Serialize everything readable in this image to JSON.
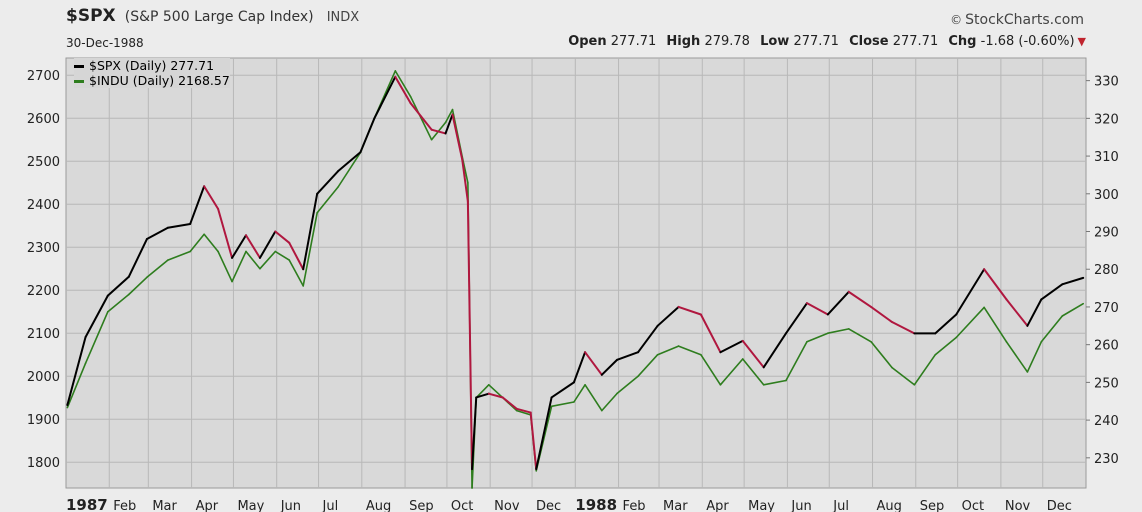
{
  "header": {
    "symbol": "$SPX",
    "name": "(S&P 500 Large Cap Index)",
    "exchange": "INDX",
    "date": "30-Dec-1988",
    "brand": "StockCharts.com",
    "brand_symbol": "©",
    "quote": {
      "open_label": "Open",
      "open": "277.71",
      "high_label": "High",
      "high": "279.78",
      "low_label": "Low",
      "low": "277.71",
      "close_label": "Close",
      "close": "277.71",
      "chg_label": "Chg",
      "chg": "-1.68 (-0.60%)",
      "chg_arrow": "▼"
    }
  },
  "chart_data": {
    "type": "line",
    "legend": [
      {
        "label": "$SPX (Daily) 277.71",
        "color": "#000000"
      },
      {
        "label": "$INDU (Daily) 2168.57",
        "color": "#2e7d1e"
      }
    ],
    "legend_placement": "top-left",
    "grid": true,
    "x_labels": [
      {
        "label": "1987",
        "bold": true
      },
      {
        "label": "Feb"
      },
      {
        "label": "Mar"
      },
      {
        "label": "Apr"
      },
      {
        "label": "May"
      },
      {
        "label": "Jun"
      },
      {
        "label": "Jul"
      },
      {
        "label": "Aug"
      },
      {
        "label": "Sep"
      },
      {
        "label": "Oct"
      },
      {
        "label": "Nov"
      },
      {
        "label": "Dec"
      },
      {
        "label": "1988",
        "bold": true
      },
      {
        "label": "Feb"
      },
      {
        "label": "Mar"
      },
      {
        "label": "Apr"
      },
      {
        "label": "May"
      },
      {
        "label": "Jun"
      },
      {
        "label": "Jul"
      },
      {
        "label": "Aug"
      },
      {
        "label": "Sep"
      },
      {
        "label": "Oct"
      },
      {
        "label": "Nov"
      },
      {
        "label": "Dec"
      }
    ],
    "left_axis": {
      "ticks": [
        1800,
        1900,
        2000,
        2100,
        2200,
        2300,
        2400,
        2500,
        2600,
        2700
      ],
      "range": [
        1740,
        2740
      ],
      "series": "$INDU"
    },
    "right_axis": {
      "ticks": [
        230,
        240,
        250,
        260,
        270,
        280,
        290,
        300,
        310,
        320,
        330
      ],
      "range": [
        222,
        336
      ],
      "series": "$SPX"
    },
    "series": [
      {
        "name": "$SPX",
        "axis": "right",
        "up_color": "#000000",
        "down_color": "#b0173f",
        "x": [
          "1987-01-02",
          "1987-01-15",
          "1987-01-31",
          "1987-02-15",
          "1987-02-28",
          "1987-03-15",
          "1987-03-31",
          "1987-04-10",
          "1987-04-20",
          "1987-04-30",
          "1987-05-10",
          "1987-05-20",
          "1987-05-31",
          "1987-06-10",
          "1987-06-20",
          "1987-06-30",
          "1987-07-15",
          "1987-07-31",
          "1987-08-10",
          "1987-08-25",
          "1987-09-05",
          "1987-09-20",
          "1987-09-30",
          "1987-10-05",
          "1987-10-12",
          "1987-10-16",
          "1987-10-19",
          "1987-10-22",
          "1987-10-31",
          "1987-11-10",
          "1987-11-20",
          "1987-11-30",
          "1987-12-04",
          "1987-12-15",
          "1987-12-31",
          "1988-01-08",
          "1988-01-20",
          "1988-01-31",
          "1988-02-15",
          "1988-02-29",
          "1988-03-15",
          "1988-03-31",
          "1988-04-14",
          "1988-04-30",
          "1988-05-15",
          "1988-05-31",
          "1988-06-15",
          "1988-06-30",
          "1988-07-15",
          "1988-07-31",
          "1988-08-15",
          "1988-08-31",
          "1988-09-15",
          "1988-09-30",
          "1988-10-20",
          "1988-11-05",
          "1988-11-20",
          "1988-11-30",
          "1988-12-15",
          "1988-12-30"
        ],
        "y": [
          244,
          262,
          273,
          278,
          288,
          291,
          292,
          302,
          296,
          283,
          289,
          283,
          290,
          287,
          280,
          300,
          306,
          311,
          320,
          331,
          324,
          317,
          316,
          321,
          309,
          298,
          227,
          246,
          247,
          246,
          243,
          242,
          227,
          246,
          250,
          258,
          252,
          256,
          258,
          265,
          270,
          268,
          258,
          261,
          254,
          263,
          271,
          268,
          274,
          270,
          266,
          263,
          263,
          268,
          280,
          272,
          265,
          272,
          276,
          277.71
        ]
      },
      {
        "name": "$INDU",
        "axis": "left",
        "up_color": "#2e7d1e",
        "down_color": "#2e7d1e",
        "x": [
          "1987-01-02",
          "1987-01-15",
          "1987-01-31",
          "1987-02-15",
          "1987-02-28",
          "1987-03-15",
          "1987-03-31",
          "1987-04-10",
          "1987-04-20",
          "1987-04-30",
          "1987-05-10",
          "1987-05-20",
          "1987-05-31",
          "1987-06-10",
          "1987-06-20",
          "1987-06-30",
          "1987-07-15",
          "1987-07-31",
          "1987-08-10",
          "1987-08-25",
          "1987-09-05",
          "1987-09-20",
          "1987-09-30",
          "1987-10-05",
          "1987-10-12",
          "1987-10-16",
          "1987-10-19",
          "1987-10-22",
          "1987-10-31",
          "1987-11-10",
          "1987-11-20",
          "1987-11-30",
          "1987-12-04",
          "1987-12-15",
          "1987-12-31",
          "1988-01-08",
          "1988-01-20",
          "1988-01-31",
          "1988-02-15",
          "1988-02-29",
          "1988-03-15",
          "1988-03-31",
          "1988-04-14",
          "1988-04-30",
          "1988-05-15",
          "1988-05-31",
          "1988-06-15",
          "1988-06-30",
          "1988-07-15",
          "1988-07-31",
          "1988-08-15",
          "1988-08-31",
          "1988-09-15",
          "1988-09-30",
          "1988-10-20",
          "1988-11-05",
          "1988-11-20",
          "1988-11-30",
          "1988-12-15",
          "1988-12-30"
        ],
        "y": [
          1927,
          2030,
          2150,
          2190,
          2230,
          2270,
          2290,
          2330,
          2290,
          2220,
          2290,
          2250,
          2290,
          2270,
          2210,
          2380,
          2440,
          2520,
          2600,
          2710,
          2650,
          2550,
          2590,
          2620,
          2510,
          2450,
          1740,
          1950,
          1980,
          1950,
          1920,
          1910,
          1780,
          1930,
          1940,
          1980,
          1920,
          1960,
          2000,
          2050,
          2070,
          2050,
          1980,
          2040,
          1980,
          1990,
          2080,
          2100,
          2110,
          2080,
          2020,
          1980,
          2050,
          2090,
          2160,
          2080,
          2010,
          2080,
          2140,
          2168.57
        ]
      }
    ]
  }
}
